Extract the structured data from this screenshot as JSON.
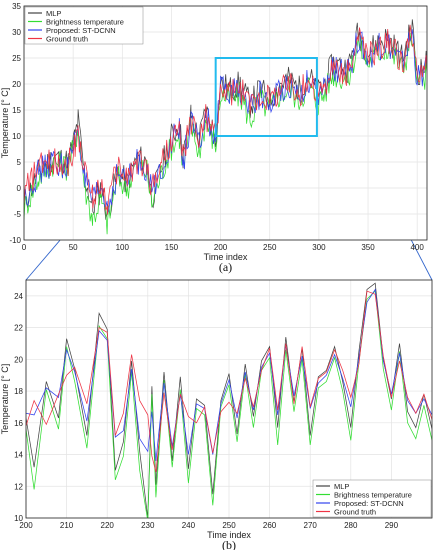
{
  "legend_labels": [
    "MLP",
    "Brightness temperature",
    "Proposed: ST-DCNN",
    "Ground truth"
  ],
  "chart_data": [
    {
      "type": "line",
      "panel_label": "(a)",
      "xlabel": "Time index",
      "ylabel": "Temperature [° C]",
      "xlim": [
        0,
        410
      ],
      "ylim": [
        -10,
        35
      ],
      "x_ticks": [
        0,
        50,
        100,
        150,
        200,
        250,
        300,
        350,
        400
      ],
      "y_ticks": [
        -10,
        -5,
        0,
        5,
        10,
        15,
        20,
        25,
        30,
        35
      ],
      "grid": true,
      "legend_position": "top-left",
      "zoom_box": {
        "x": [
          195,
          298
        ],
        "y": [
          10,
          25
        ]
      },
      "x_anchor": [
        0,
        15,
        30,
        45,
        52,
        55,
        62,
        70,
        78,
        85,
        95,
        105,
        115,
        125,
        130,
        140,
        150,
        158,
        162,
        170,
        178,
        185,
        195,
        200,
        210,
        220,
        230,
        240,
        250,
        260,
        270,
        280,
        290,
        298,
        305,
        315,
        330,
        340,
        350,
        360,
        370,
        385,
        395,
        400,
        410
      ],
      "series": [
        {
          "name": "MLP",
          "color": "#444444",
          "values": [
            -3,
            3,
            6,
            5,
            10,
            13,
            2,
            -4,
            0,
            -5,
            3,
            1,
            6,
            5,
            -2,
            4,
            10,
            12,
            6,
            14,
            9,
            15,
            10,
            20,
            19,
            20,
            16,
            19,
            17,
            20,
            21,
            19,
            22,
            18,
            20,
            24,
            23,
            30,
            26,
            28,
            29,
            25,
            31,
            22,
            24
          ]
        },
        {
          "name": "Brightness temperature",
          "color": "#33dd33",
          "values": [
            -4,
            2,
            5,
            4,
            9,
            12,
            0,
            -6,
            -2,
            -7,
            2,
            0,
            5,
            3,
            -3,
            3,
            8,
            10,
            4,
            12,
            7,
            13,
            8,
            18,
            17,
            18,
            13,
            17,
            15,
            18,
            19,
            17,
            20,
            16,
            18,
            22,
            21,
            28,
            24,
            26,
            27,
            23,
            29,
            20,
            22
          ]
        },
        {
          "name": "Proposed: ST-DCNN",
          "color": "#3344ee",
          "values": [
            -2,
            3,
            5,
            4,
            9,
            12,
            1,
            -3,
            0,
            -4,
            3,
            1,
            5,
            4,
            -1,
            4,
            9,
            11,
            5,
            13,
            8,
            14,
            9,
            19,
            18,
            19,
            15,
            18,
            16,
            19,
            20,
            18,
            21,
            17,
            19,
            23,
            22,
            29,
            25,
            27,
            28,
            24,
            30,
            21,
            23
          ]
        },
        {
          "name": "Ground truth",
          "color": "#ee3344",
          "values": [
            -1,
            4,
            5,
            5,
            8,
            11,
            3,
            -2,
            1,
            -3,
            4,
            2,
            5,
            4,
            0,
            5,
            9,
            11,
            6,
            13,
            9,
            14,
            10,
            19,
            18,
            19,
            16,
            18,
            17,
            19,
            20,
            18,
            21,
            18,
            19,
            23,
            22,
            29,
            25,
            27,
            28,
            24,
            30,
            21,
            23
          ]
        }
      ]
    },
    {
      "type": "line",
      "panel_label": "(b)",
      "xlabel": "Time index",
      "ylabel": "Temperature [° C]",
      "xlim": [
        200,
        300
      ],
      "ylim": [
        10,
        25
      ],
      "x_ticks": [
        200,
        210,
        220,
        230,
        240,
        250,
        260,
        270,
        280,
        290
      ],
      "y_ticks": [
        10,
        12,
        14,
        16,
        18,
        20,
        22,
        24
      ],
      "grid": true,
      "legend_position": "bottom-right",
      "x": [
        200,
        202,
        205,
        208,
        210,
        212,
        215,
        218,
        220,
        222,
        224,
        226,
        228,
        230,
        231,
        232,
        234,
        236,
        238,
        240,
        242,
        244,
        246,
        248,
        250,
        252,
        254,
        256,
        258,
        260,
        262,
        264,
        266,
        268,
        270,
        272,
        274,
        276,
        278,
        280,
        282,
        284,
        286,
        288,
        290,
        292,
        294,
        296,
        298,
        300
      ],
      "series": [
        {
          "name": "MLP",
          "color": "#444444",
          "values": [
            16.3,
            13.2,
            18.6,
            16.3,
            21.3,
            19.4,
            15.2,
            22.9,
            21.9,
            13.0,
            14.8,
            19.9,
            14.2,
            10.0,
            18.3,
            12.1,
            19.2,
            13.6,
            18.9,
            13.1,
            17.5,
            17.1,
            11.5,
            17.4,
            19.1,
            15.3,
            19.7,
            16.4,
            19.9,
            20.8,
            15.7,
            21.4,
            17.3,
            20.7,
            15.2,
            18.9,
            19.3,
            20.8,
            18.6,
            15.7,
            20.5,
            24.4,
            24.8,
            20.0,
            17.5,
            21.0,
            16.7,
            15.7,
            17.8,
            15.6
          ]
        },
        {
          "name": "Brightness temperature",
          "color": "#33dd33",
          "values": [
            15.6,
            11.8,
            18.1,
            15.6,
            20.8,
            18.6,
            14.4,
            22.1,
            21.3,
            12.4,
            13.9,
            19.2,
            13.0,
            9.8,
            17.8,
            11.3,
            18.7,
            13.2,
            18.1,
            12.2,
            16.9,
            16.5,
            10.8,
            17.0,
            18.4,
            14.8,
            19.1,
            15.7,
            19.3,
            20.1,
            14.6,
            20.6,
            16.7,
            20.0,
            14.6,
            18.2,
            18.6,
            20.1,
            18.0,
            14.9,
            19.8,
            23.8,
            24.3,
            19.4,
            16.8,
            20.5,
            16.0,
            15.0,
            17.1,
            14.9
          ]
        },
        {
          "name": "Proposed: ST-DCNN",
          "color": "#3344ee",
          "values": [
            16.6,
            16.5,
            18.2,
            17.6,
            20.6,
            19.2,
            16.1,
            21.8,
            21.2,
            15.1,
            15.5,
            19.4,
            15.0,
            14.2,
            16.7,
            13.6,
            18.5,
            14.5,
            17.8,
            14.0,
            17.2,
            16.9,
            14.0,
            17.2,
            18.7,
            16.3,
            19.2,
            16.8,
            19.5,
            20.4,
            16.5,
            20.9,
            17.7,
            20.2,
            16.9,
            18.5,
            19.0,
            20.3,
            18.8,
            17.0,
            20.1,
            23.6,
            24.4,
            19.9,
            17.8,
            20.4,
            17.4,
            16.6,
            17.5,
            16.5
          ]
        },
        {
          "name": "Ground truth",
          "color": "#ee3344",
          "values": [
            15.8,
            17.4,
            15.9,
            17.8,
            19.0,
            19.5,
            17.2,
            22.0,
            21.7,
            15.2,
            16.6,
            20.3,
            17.4,
            16.5,
            13.9,
            12.9,
            17.9,
            14.3,
            17.8,
            16.4,
            16.0,
            17.0,
            14.1,
            16.7,
            17.3,
            16.6,
            18.8,
            17.0,
            19.3,
            20.7,
            16.8,
            21.0,
            17.2,
            20.8,
            17.0,
            18.8,
            19.2,
            20.6,
            19.3,
            17.6,
            19.7,
            24.3,
            24.1,
            20.2,
            17.6,
            19.9,
            17.6,
            16.6,
            17.8,
            16.2
          ]
        }
      ]
    }
  ]
}
